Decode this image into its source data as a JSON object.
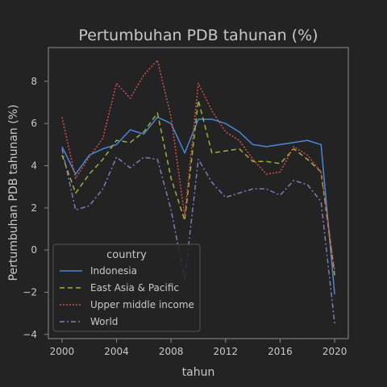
{
  "chart_data": {
    "type": "line",
    "title": "Pertumbuhan PDB tahunan (%)",
    "xlabel": "tahun",
    "ylabel": "Pertumbuhan PDB tahunan (%)",
    "x": [
      2000,
      2001,
      2002,
      2003,
      2004,
      2005,
      2006,
      2007,
      2008,
      2009,
      2010,
      2011,
      2012,
      2013,
      2014,
      2015,
      2016,
      2017,
      2018,
      2019,
      2020
    ],
    "xlim": [
      1999,
      2021
    ],
    "ylim": [
      -4.2,
      9.6
    ],
    "xticks": [
      2000,
      2004,
      2008,
      2012,
      2016,
      2020
    ],
    "yticks": [
      -4,
      -2,
      0,
      2,
      4,
      6,
      8
    ],
    "grid": false,
    "legend": {
      "title": "country",
      "position": "lower-left"
    },
    "series": [
      {
        "name": "Indonesia",
        "color": "#4a86d8",
        "dash": "solid",
        "values": [
          4.9,
          3.6,
          4.5,
          4.8,
          5.0,
          5.7,
          5.5,
          6.3,
          6.0,
          4.6,
          6.2,
          6.2,
          6.0,
          5.6,
          5.0,
          4.9,
          5.0,
          5.1,
          5.2,
          5.0,
          -2.1
        ]
      },
      {
        "name": "East Asia & Pacific",
        "color": "#9bb13e",
        "dash": "6,4",
        "values": [
          4.5,
          2.7,
          3.6,
          4.3,
          5.2,
          5.1,
          5.6,
          6.5,
          3.4,
          1.4,
          7.1,
          4.6,
          4.7,
          4.8,
          4.2,
          4.2,
          4.1,
          4.8,
          4.3,
          3.7,
          -1.2
        ]
      },
      {
        "name": "Upper middle income",
        "color": "#d05050",
        "dash": "2,2",
        "values": [
          6.3,
          3.4,
          4.4,
          5.3,
          7.9,
          7.2,
          8.3,
          9.0,
          6.3,
          1.6,
          7.9,
          6.6,
          5.6,
          5.2,
          4.3,
          3.6,
          3.7,
          4.9,
          4.5,
          3.7,
          -1.0
        ]
      },
      {
        "name": "World",
        "color": "#8677b8",
        "dash": "6,3,2,3",
        "values": [
          4.8,
          1.9,
          2.1,
          2.9,
          4.4,
          3.9,
          4.4,
          4.3,
          1.9,
          -1.4,
          4.3,
          3.2,
          2.5,
          2.7,
          2.9,
          2.9,
          2.6,
          3.3,
          3.1,
          2.3,
          -3.5
        ]
      }
    ]
  }
}
